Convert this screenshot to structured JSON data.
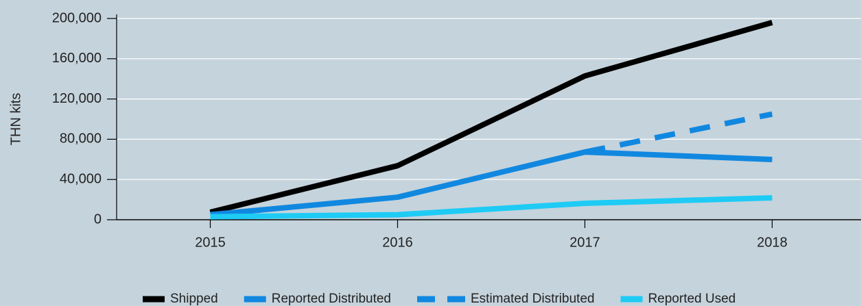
{
  "chart_data": {
    "type": "line",
    "y_label": "THN kits",
    "categories": [
      "2015",
      "2016",
      "2017",
      "2018"
    ],
    "series": [
      {
        "name": "Shipped",
        "color": "#000000",
        "values": [
          7500,
          53700,
          142900,
          196000
        ]
      },
      {
        "name": "Reported Distributed",
        "color": "#1188e0",
        "values": [
          5000,
          22400,
          67300,
          59900
        ]
      },
      {
        "name": "Estimated Distributed",
        "color": "#1188e0",
        "dashed": true,
        "values": [
          null,
          null,
          67300,
          105000
        ]
      },
      {
        "name": "Reported Used",
        "color": "#1ecbf5",
        "values": [
          3000,
          5000,
          16300,
          21800
        ]
      }
    ],
    "ylim": [
      0,
      200000
    ],
    "yticks": [
      0,
      {
        "value": 40000,
        "label": "40,000"
      },
      {
        "value": 80000,
        "label": "80,000"
      },
      {
        "value": 120000,
        "label": "120,000"
      },
      {
        "value": 160000,
        "label": "160,000"
      },
      {
        "value": 200000,
        "label": "200,000"
      }
    ],
    "grid": true,
    "legend": "bottom"
  }
}
